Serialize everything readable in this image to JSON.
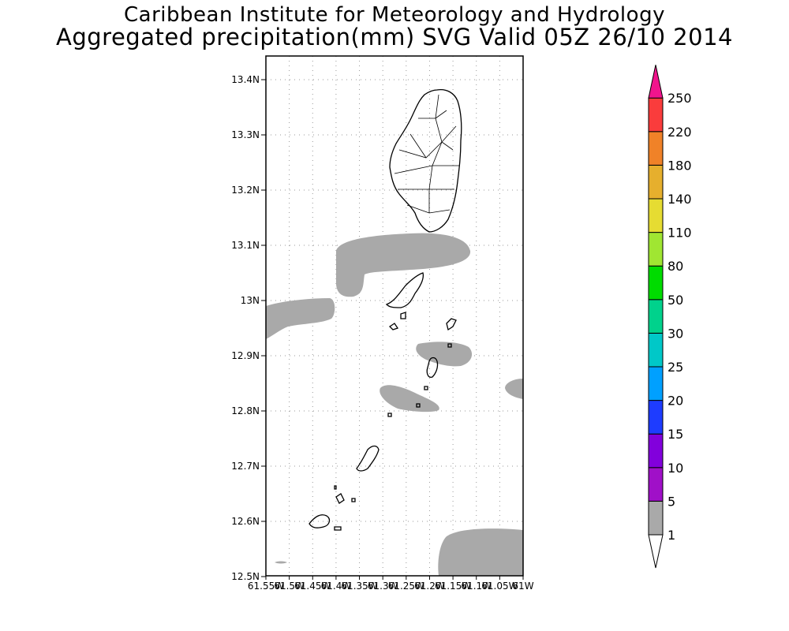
{
  "title": {
    "line1": "Caribbean Institute for Meteorology and Hydrology",
    "line2": "Aggregated precipitation(mm) SVG Valid 05Z 26/10 2014"
  },
  "map": {
    "lat_labels": [
      "13.4N",
      "13.3N",
      "13.2N",
      "13.1N",
      "13N",
      "12.9N",
      "12.8N",
      "12.7N",
      "12.6N",
      "12.5N"
    ],
    "lon_labels": [
      "61.55W",
      "61.5W",
      "61.45W",
      "61.4W",
      "61.35W",
      "61.3W",
      "61.25W",
      "61.2W",
      "61.15W",
      "61.1W",
      "61.05W",
      "61W"
    ],
    "lon_range": [
      -61.55,
      -61.0
    ],
    "lat_range": [
      12.5,
      13.44
    ],
    "land_outline_color": "#000000",
    "precip_fill_color": "#a9a9a9",
    "grid": "dotted"
  },
  "colorbar": {
    "levels": [
      {
        "label": "1",
        "color": "#ffffff"
      },
      {
        "label": "5",
        "color": "#a9a9a9"
      },
      {
        "label": "10",
        "color": "#a010c8"
      },
      {
        "label": "15",
        "color": "#8200dc"
      },
      {
        "label": "20",
        "color": "#1e3cff"
      },
      {
        "label": "25",
        "color": "#00a0ff"
      },
      {
        "label": "30",
        "color": "#00c8c8"
      },
      {
        "label": "50",
        "color": "#00d28c"
      },
      {
        "label": "80",
        "color": "#00dc00"
      },
      {
        "label": "110",
        "color": "#a0e632"
      },
      {
        "label": "140",
        "color": "#e6dc32"
      },
      {
        "label": "180",
        "color": "#e6af2d"
      },
      {
        "label": "220",
        "color": "#f08228"
      },
      {
        "label": "250",
        "color": "#fa3c3c"
      }
    ],
    "over_color": "#f0148c",
    "under_color": "#ffffff"
  }
}
